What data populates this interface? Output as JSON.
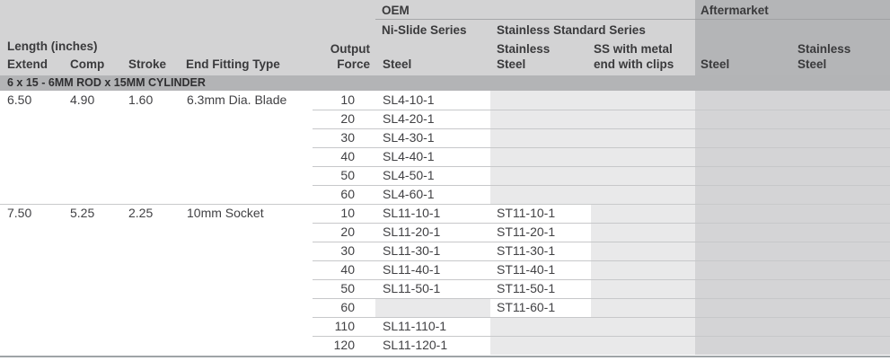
{
  "header": {
    "oem_label": "OEM",
    "aftermarket_label": "Aftermarket",
    "ni_slide_label": "Ni-Slide Series",
    "stainless_standard_label": "Stainless Standard Series",
    "length_label": "Length (inches)",
    "columns": {
      "extend": "Extend",
      "comp": "Comp",
      "stroke": "Stroke",
      "end_fitting": "End Fitting Type",
      "output_force_line1": "Output",
      "output_force_line2": "Force",
      "oem_steel": "Steel",
      "oem_stainless_line1": "Stainless",
      "oem_stainless_line2": "Steel",
      "oem_ss_clips_line1": "SS with metal",
      "oem_ss_clips_line2": "end with clips",
      "aftermarket_steel": "Steel",
      "aftermarket_stainless_line1": "Stainless",
      "aftermarket_stainless_line2": "Steel"
    }
  },
  "section_band": "6 x 15 - 6MM ROD x 15MM CYLINDER",
  "groups": [
    {
      "extend": "6.50",
      "comp": "4.90",
      "stroke": "1.60",
      "end_fitting": "6.3mm Dia. Blade",
      "rows": [
        {
          "force": "10",
          "oem_steel": "SL4-10-1",
          "oem_stainless": "",
          "oem_ss_clips": "",
          "am_steel": "",
          "am_stainless": ""
        },
        {
          "force": "20",
          "oem_steel": "SL4-20-1",
          "oem_stainless": "",
          "oem_ss_clips": "",
          "am_steel": "",
          "am_stainless": ""
        },
        {
          "force": "30",
          "oem_steel": "SL4-30-1",
          "oem_stainless": "",
          "oem_ss_clips": "",
          "am_steel": "",
          "am_stainless": ""
        },
        {
          "force": "40",
          "oem_steel": "SL4-40-1",
          "oem_stainless": "",
          "oem_ss_clips": "",
          "am_steel": "",
          "am_stainless": ""
        },
        {
          "force": "50",
          "oem_steel": "SL4-50-1",
          "oem_stainless": "",
          "oem_ss_clips": "",
          "am_steel": "",
          "am_stainless": ""
        },
        {
          "force": "60",
          "oem_steel": "SL4-60-1",
          "oem_stainless": "",
          "oem_ss_clips": "",
          "am_steel": "",
          "am_stainless": ""
        }
      ]
    },
    {
      "extend": "7.50",
      "comp": "5.25",
      "stroke": "2.25",
      "end_fitting": "10mm Socket",
      "rows": [
        {
          "force": "10",
          "oem_steel": "SL11-10-1",
          "oem_stainless": "ST11-10-1",
          "oem_ss_clips": "",
          "am_steel": "",
          "am_stainless": ""
        },
        {
          "force": "20",
          "oem_steel": "SL11-20-1",
          "oem_stainless": "ST11-20-1",
          "oem_ss_clips": "",
          "am_steel": "",
          "am_stainless": ""
        },
        {
          "force": "30",
          "oem_steel": "SL11-30-1",
          "oem_stainless": "ST11-30-1",
          "oem_ss_clips": "",
          "am_steel": "",
          "am_stainless": ""
        },
        {
          "force": "40",
          "oem_steel": "SL11-40-1",
          "oem_stainless": "ST11-40-1",
          "oem_ss_clips": "",
          "am_steel": "",
          "am_stainless": ""
        },
        {
          "force": "50",
          "oem_steel": "SL11-50-1",
          "oem_stainless": "ST11-50-1",
          "oem_ss_clips": "",
          "am_steel": "",
          "am_stainless": ""
        },
        {
          "force": "60",
          "oem_steel": "",
          "oem_stainless": "ST11-60-1",
          "oem_ss_clips": "",
          "am_steel": "",
          "am_stainless": ""
        },
        {
          "force": "110",
          "oem_steel": "SL11-110-1",
          "oem_stainless": "",
          "oem_ss_clips": "",
          "am_steel": "",
          "am_stainless": ""
        },
        {
          "force": "120",
          "oem_steel": "SL11-120-1",
          "oem_stainless": "",
          "oem_ss_clips": "",
          "am_steel": "",
          "am_stainless": ""
        }
      ]
    }
  ],
  "colors": {
    "header_bg": "#d3d3d4",
    "dark_bg": "#b4b5b7",
    "band_bg": "#b3b4b6",
    "cell_empty_oem": "#e9e9ea",
    "cell_aftermarket": "#d4d4d6",
    "cell_part": "#ffffff",
    "row_line": "#c7c8ca",
    "section_line": "#a6a7a9",
    "bottom_border": "#9fa4a7",
    "text": "#3a3a3c"
  }
}
